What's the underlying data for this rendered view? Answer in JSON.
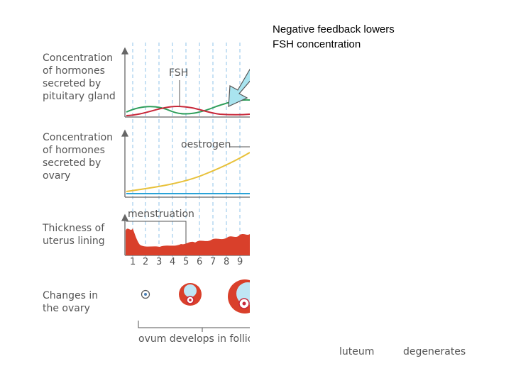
{
  "callout": {
    "text": "Negative feedback lowers\nFSH concentration"
  },
  "row_labels": {
    "pituitary": "Concentration\nof hormones\nsecreted by\npituitary gland",
    "ovary_hormones": "Concentration\nof hormones\nsecreted by\novary",
    "uterus": "Thickness of\nuterus lining",
    "ovary_changes": "Changes in\nthe ovary"
  },
  "curve_labels": {
    "fsh": "FSH",
    "oestrogen": "oestrogen"
  },
  "menstruation_label": "menstruation",
  "day_numbers": [
    "1",
    "2",
    "3",
    "4",
    "5",
    "6",
    "7",
    "8",
    "9"
  ],
  "bottom_labels": {
    "ovum": "ovum develops in follic",
    "luteum": "luteum",
    "degenerates": "degenerates"
  },
  "colors": {
    "fsh": "#c8283a",
    "lh": "#2e9e5b",
    "oestrogen": "#e8c13a",
    "progesterone": "#2aa3d8",
    "uterus": "#d9402b",
    "arrow": "#a9e4ef",
    "gridline": "#8fc3e8"
  }
}
